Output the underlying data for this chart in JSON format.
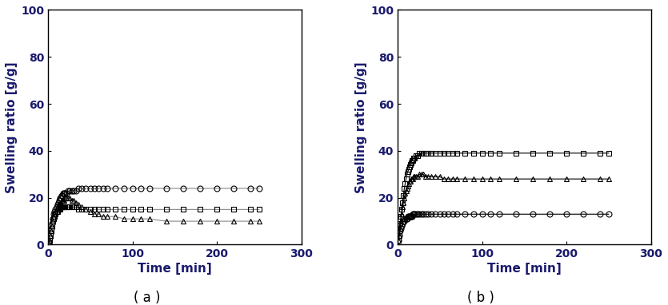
{
  "xlabel": "Time [min]",
  "ylabel": "Swelling ratio [g/g]",
  "xlim": [
    0,
    260
  ],
  "ylim": [
    0,
    100
  ],
  "xticks": [
    0,
    100,
    200,
    300
  ],
  "yticks": [
    0,
    20,
    40,
    60,
    80,
    100
  ],
  "label_a": "( a )",
  "label_b": "( b )",
  "text_color": "#1a1a6e",
  "spine_color": "#000000",
  "background": "#ffffff",
  "panel_a": {
    "circle": {
      "time": [
        1,
        2,
        3,
        4,
        5,
        6,
        7,
        8,
        9,
        10,
        11,
        12,
        13,
        14,
        15,
        16,
        17,
        18,
        19,
        20,
        22,
        24,
        26,
        28,
        30,
        33,
        36,
        40,
        45,
        50,
        55,
        60,
        65,
        70,
        80,
        90,
        100,
        110,
        120,
        140,
        160,
        180,
        200,
        220,
        240,
        250
      ],
      "values": [
        1,
        3,
        5,
        7,
        9,
        11,
        13,
        14,
        15,
        16,
        17,
        18,
        19,
        20,
        20,
        21,
        21,
        22,
        22,
        22,
        22,
        23,
        23,
        23,
        23,
        23,
        24,
        24,
        24,
        24,
        24,
        24,
        24,
        24,
        24,
        24,
        24,
        24,
        24,
        24,
        24,
        24,
        24,
        24,
        24,
        24
      ]
    },
    "square": {
      "time": [
        1,
        2,
        3,
        4,
        5,
        6,
        7,
        8,
        9,
        10,
        11,
        12,
        13,
        14,
        15,
        16,
        17,
        18,
        19,
        20,
        22,
        24,
        26,
        28,
        30,
        33,
        36,
        40,
        45,
        50,
        55,
        60,
        65,
        70,
        80,
        90,
        100,
        110,
        120,
        140,
        160,
        180,
        200,
        220,
        240,
        250
      ],
      "values": [
        1,
        2,
        4,
        6,
        8,
        10,
        11,
        12,
        13,
        14,
        14,
        15,
        15,
        15,
        16,
        16,
        16,
        16,
        16,
        16,
        16,
        16,
        16,
        16,
        16,
        16,
        15,
        15,
        15,
        15,
        15,
        15,
        15,
        15,
        15,
        15,
        15,
        15,
        15,
        15,
        15,
        15,
        15,
        15,
        15,
        15
      ]
    },
    "triangle": {
      "time": [
        1,
        2,
        3,
        4,
        5,
        6,
        7,
        8,
        9,
        10,
        11,
        12,
        13,
        14,
        15,
        16,
        17,
        18,
        19,
        20,
        22,
        24,
        26,
        28,
        30,
        33,
        36,
        40,
        45,
        50,
        55,
        60,
        65,
        70,
        80,
        90,
        100,
        110,
        120,
        140,
        160,
        180,
        200,
        220,
        240,
        250
      ],
      "values": [
        1,
        2,
        4,
        6,
        8,
        10,
        12,
        13,
        14,
        15,
        16,
        17,
        17,
        18,
        18,
        19,
        19,
        19,
        19,
        20,
        20,
        20,
        20,
        19,
        19,
        18,
        17,
        16,
        15,
        14,
        13,
        13,
        12,
        12,
        12,
        11,
        11,
        11,
        11,
        10,
        10,
        10,
        10,
        10,
        10,
        10
      ]
    }
  },
  "panel_b": {
    "circle": {
      "time": [
        1,
        2,
        3,
        4,
        5,
        6,
        7,
        8,
        9,
        10,
        11,
        12,
        13,
        14,
        15,
        16,
        17,
        18,
        19,
        20,
        22,
        24,
        26,
        28,
        30,
        33,
        36,
        40,
        45,
        50,
        55,
        60,
        65,
        70,
        80,
        90,
        100,
        110,
        120,
        140,
        160,
        180,
        200,
        220,
        240,
        250
      ],
      "values": [
        2,
        4,
        6,
        7,
        8,
        9,
        10,
        10,
        11,
        11,
        11,
        12,
        12,
        12,
        12,
        12,
        12,
        13,
        13,
        13,
        13,
        13,
        13,
        13,
        13,
        13,
        13,
        13,
        13,
        13,
        13,
        13,
        13,
        13,
        13,
        13,
        13,
        13,
        13,
        13,
        13,
        13,
        13,
        13,
        13,
        13
      ]
    },
    "square": {
      "time": [
        1,
        2,
        3,
        4,
        5,
        6,
        7,
        8,
        9,
        10,
        11,
        12,
        13,
        14,
        15,
        16,
        17,
        18,
        19,
        20,
        22,
        24,
        26,
        28,
        30,
        33,
        36,
        40,
        45,
        50,
        55,
        60,
        65,
        70,
        80,
        90,
        100,
        110,
        120,
        140,
        160,
        180,
        200,
        220,
        240,
        250
      ],
      "values": [
        2,
        5,
        9,
        12,
        15,
        18,
        21,
        24,
        26,
        28,
        30,
        31,
        32,
        33,
        34,
        35,
        36,
        36,
        37,
        37,
        38,
        38,
        39,
        39,
        39,
        39,
        39,
        39,
        39,
        39,
        39,
        39,
        39,
        39,
        39,
        39,
        39,
        39,
        39,
        39,
        39,
        39,
        39,
        39,
        39,
        39
      ]
    },
    "triangle": {
      "time": [
        1,
        2,
        3,
        4,
        5,
        6,
        7,
        8,
        9,
        10,
        11,
        12,
        13,
        14,
        15,
        16,
        17,
        18,
        19,
        20,
        22,
        24,
        26,
        28,
        30,
        33,
        36,
        40,
        45,
        50,
        55,
        60,
        65,
        70,
        80,
        90,
        100,
        110,
        120,
        140,
        160,
        180,
        200,
        220,
        240,
        250
      ],
      "values": [
        2,
        4,
        7,
        10,
        13,
        16,
        18,
        20,
        22,
        23,
        24,
        25,
        26,
        27,
        27,
        28,
        28,
        28,
        29,
        29,
        29,
        29,
        30,
        30,
        30,
        29,
        29,
        29,
        29,
        29,
        28,
        28,
        28,
        28,
        28,
        28,
        28,
        28,
        28,
        28,
        28,
        28,
        28,
        28,
        28,
        28
      ]
    }
  },
  "line_color_a": "#888888",
  "line_color_b": "#000000",
  "marker_color": "#000000",
  "marker_size": 5,
  "line_width": 0.8,
  "fontsize_label": 11,
  "fontsize_tick": 10,
  "fontsize_caption": 12
}
